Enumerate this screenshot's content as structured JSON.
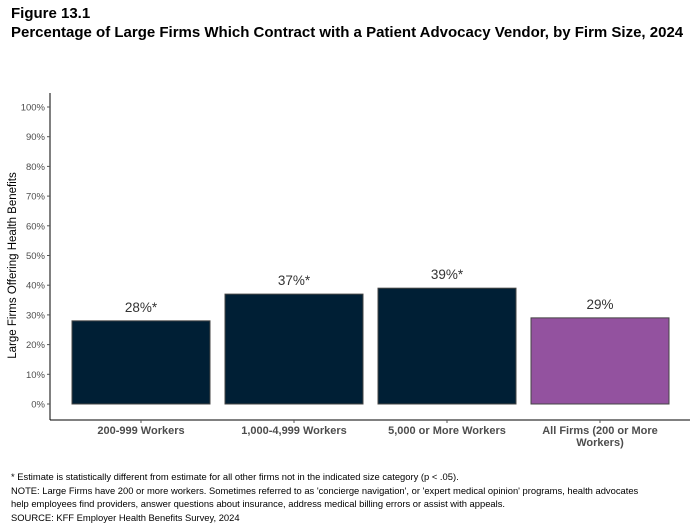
{
  "figure_label": "Figure 13.1",
  "title": "Percentage of Large Firms Which Contract with a Patient Advocacy Vendor, by Firm Size, 2024",
  "chart_data": {
    "type": "bar",
    "categories": [
      "200-999 Workers",
      "1,000-4,999 Workers",
      "5,000 or More Workers",
      "All Firms (200 or More Workers)"
    ],
    "values": [
      28,
      37,
      39,
      29
    ],
    "data_labels": [
      "28%*",
      "37%*",
      "39%*",
      "29%"
    ],
    "colors": [
      "#001f35",
      "#001f35",
      "#001f35",
      "#93529f"
    ],
    "ylabel": "Large Firms Offering Health Benefits",
    "xlabel": "",
    "ylim": [
      0,
      100
    ],
    "yticks": [
      "0%",
      "10%",
      "20%",
      "30%",
      "40%",
      "50%",
      "60%",
      "70%",
      "80%",
      "90%",
      "100%"
    ],
    "grid": false
  },
  "notes": [
    "* Estimate is statistically different from estimate for all other firms not in the indicated size category (p < .05).",
    "NOTE: Large Firms have 200 or more workers.  Sometimes referred to as 'concierge navigation', or 'expert medical opinion' programs, health advocates",
    "help employees find providers, answer questions about insurance, address medical billing errors or assist with appeals.",
    "SOURCE: KFF Employer Health Benefits Survey, 2024"
  ]
}
